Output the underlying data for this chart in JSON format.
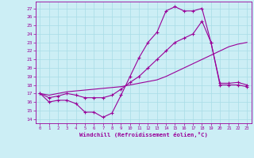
{
  "xlabel": "Windchill (Refroidissement éolien,°C)",
  "xlim": [
    -0.5,
    23.5
  ],
  "ylim": [
    13.5,
    27.8
  ],
  "yticks": [
    14,
    15,
    16,
    17,
    18,
    19,
    20,
    21,
    22,
    23,
    24,
    25,
    26,
    27
  ],
  "xticks": [
    0,
    1,
    2,
    3,
    4,
    5,
    6,
    7,
    8,
    9,
    10,
    11,
    12,
    13,
    14,
    15,
    16,
    17,
    18,
    19,
    20,
    21,
    22,
    23
  ],
  "bg_color": "#cceef5",
  "line_color": "#990099",
  "grid_color": "#a8dce6",
  "line1_x": [
    0,
    1,
    2,
    3,
    4,
    5,
    6,
    7,
    8,
    9,
    10,
    11,
    12,
    13,
    14,
    15,
    16,
    17,
    18,
    19,
    20,
    21,
    22,
    23
  ],
  "line1_y": [
    17.0,
    16.0,
    16.2,
    16.2,
    15.8,
    14.8,
    14.8,
    14.2,
    14.7,
    16.8,
    19.0,
    21.2,
    23.0,
    24.2,
    26.7,
    27.2,
    26.7,
    26.7,
    27.0,
    23.0,
    18.0,
    18.0,
    18.0,
    17.8
  ],
  "line2_x": [
    0,
    1,
    2,
    3,
    4,
    5,
    6,
    7,
    8,
    9,
    10,
    11,
    12,
    13,
    14,
    15,
    16,
    17,
    18,
    19,
    20,
    21,
    22,
    23
  ],
  "line2_y": [
    17.0,
    16.5,
    16.7,
    17.0,
    16.8,
    16.5,
    16.5,
    16.5,
    16.8,
    17.5,
    18.3,
    19.0,
    20.0,
    21.0,
    22.0,
    23.0,
    23.5,
    24.0,
    25.5,
    23.0,
    18.2,
    18.2,
    18.3,
    18.0
  ],
  "line3_x": [
    0,
    1,
    2,
    3,
    4,
    5,
    6,
    7,
    8,
    9,
    10,
    11,
    12,
    13,
    14,
    15,
    16,
    17,
    18,
    19,
    20,
    21,
    22,
    23
  ],
  "line3_y": [
    17.0,
    16.8,
    17.0,
    17.2,
    17.3,
    17.4,
    17.5,
    17.6,
    17.7,
    17.8,
    18.0,
    18.2,
    18.4,
    18.6,
    19.0,
    19.5,
    20.0,
    20.5,
    21.0,
    21.5,
    22.0,
    22.5,
    22.8,
    23.0
  ]
}
